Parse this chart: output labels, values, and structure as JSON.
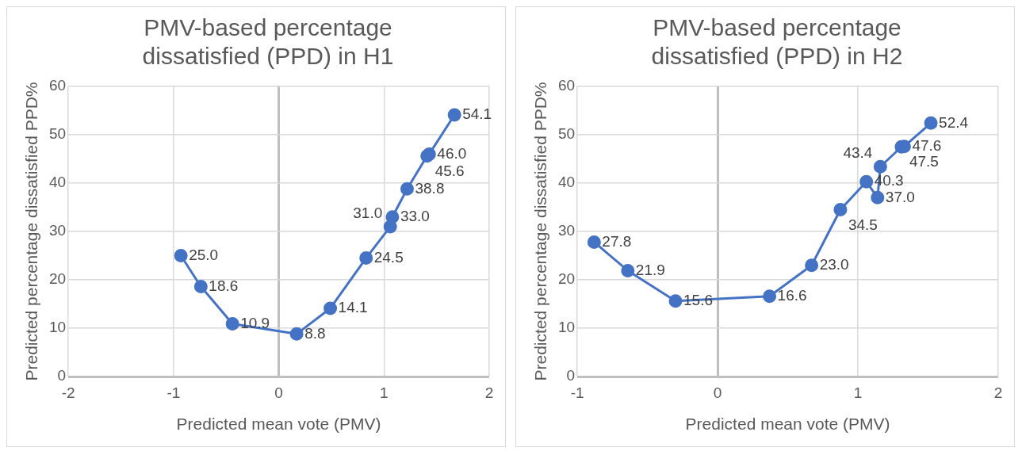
{
  "chart_data": [
    {
      "type": "line",
      "title": "PMV-based percentage dissatisfied (PPD) in H1",
      "xlabel": "Predicted mean vote (PMV)",
      "ylabel": "Predicted percentage dissatisfied PPD%",
      "x": [
        -0.93,
        -0.74,
        -0.44,
        0.17,
        0.49,
        0.83,
        1.06,
        1.08,
        1.22,
        1.41,
        1.43,
        1.67
      ],
      "values": [
        25.0,
        18.6,
        10.9,
        8.8,
        14.1,
        24.5,
        31.0,
        33.0,
        38.8,
        45.6,
        46.0,
        54.1
      ],
      "value_labels": [
        "25.0",
        "18.6",
        "10.9",
        "8.8",
        "14.1",
        "24.5",
        "31.0",
        "33.0",
        "38.8",
        "45.6",
        "46.0",
        "54.1"
      ],
      "color": "#4472c4",
      "xlim": [
        -2,
        2
      ],
      "xticks": [
        -2,
        -1,
        0,
        1,
        2
      ],
      "ylim": [
        0,
        60
      ],
      "yticks": [
        0,
        10,
        20,
        30,
        40,
        50,
        60
      ],
      "grid": true,
      "marker": "circle",
      "legend": false
    },
    {
      "type": "line",
      "title": "PMV-based percentage dissatisfied (PPD) in H2",
      "xlabel": "Predicted mean vote (PMV)",
      "ylabel": "Predicted percentage dissatisfied PPD%",
      "x": [
        -0.88,
        -0.64,
        -0.3,
        0.37,
        0.67,
        0.875,
        1.06,
        1.14,
        1.16,
        1.31,
        1.33,
        1.52
      ],
      "values": [
        27.8,
        21.9,
        15.6,
        16.6,
        23.0,
        34.5,
        40.3,
        37.0,
        43.4,
        47.5,
        47.6,
        52.4
      ],
      "value_labels": [
        "27.8",
        "21.9",
        "15.6",
        "16.6",
        "23.0",
        "34.5",
        "40.3",
        "37.0",
        "43.4",
        "47.5",
        "47.6",
        "52.4"
      ],
      "color": "#4472c4",
      "xlim": [
        -1,
        2
      ],
      "xticks": [
        -1,
        0,
        1,
        2
      ],
      "ylim": [
        0,
        60
      ],
      "yticks": [
        0,
        10,
        20,
        30,
        40,
        50,
        60
      ],
      "grid": true,
      "marker": "circle",
      "legend": false
    }
  ]
}
